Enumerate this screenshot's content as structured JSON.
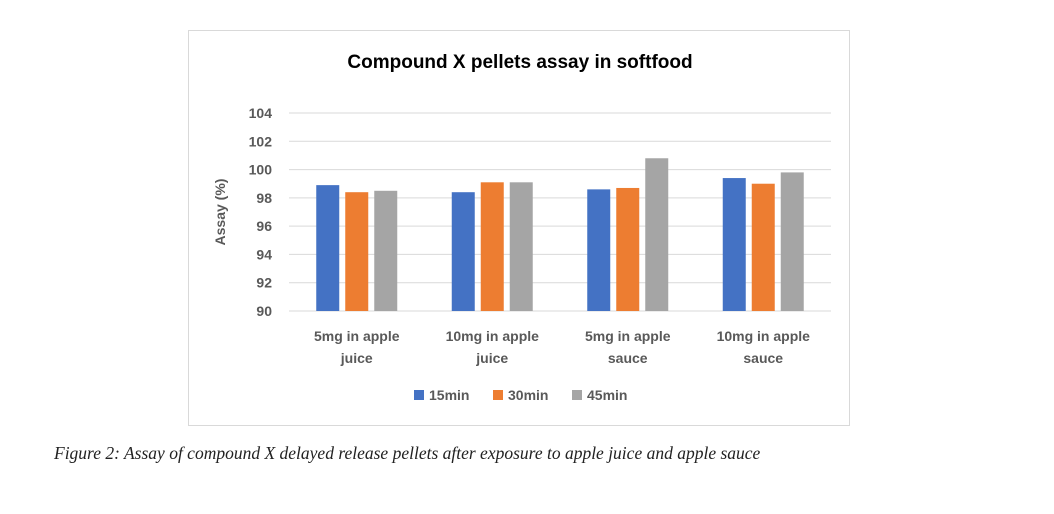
{
  "chart_data": {
    "type": "bar",
    "title": "Compound X pellets assay in softfood",
    "ylabel": "Assay (%)",
    "xlabel": "",
    "categories": [
      [
        "5mg in apple",
        "juice"
      ],
      [
        "10mg in apple",
        "juice"
      ],
      [
        "5mg in apple",
        "sauce"
      ],
      [
        "10mg in apple",
        "sauce"
      ]
    ],
    "series": [
      {
        "name": "15min",
        "color": "#4472C4",
        "values": [
          98.9,
          98.4,
          98.6,
          99.4
        ]
      },
      {
        "name": "30min",
        "color": "#ED7D31",
        "values": [
          98.4,
          99.1,
          98.7,
          99.0
        ]
      },
      {
        "name": "45min",
        "color": "#A5A5A5",
        "values": [
          98.5,
          99.1,
          100.8,
          99.8
        ]
      }
    ],
    "ylim": [
      90,
      104
    ],
    "yticks": [
      90,
      92,
      94,
      96,
      98,
      100,
      102,
      104
    ],
    "grid": true,
    "legend": "bottom"
  },
  "caption": "Figure 2: Assay of compound X delayed  release pellets  after exposure to apple juice and apple sauce"
}
